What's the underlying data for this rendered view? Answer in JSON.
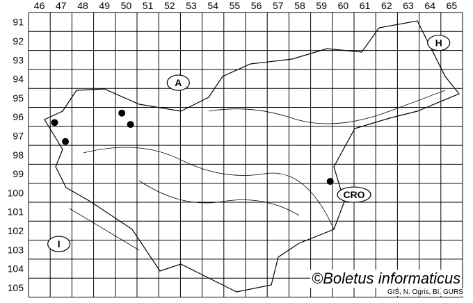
{
  "map": {
    "columns": [
      "46",
      "47",
      "48",
      "49",
      "50",
      "51",
      "52",
      "53",
      "54",
      "55",
      "56",
      "57",
      "58",
      "59",
      "60",
      "61",
      "62",
      "63",
      "64",
      "65"
    ],
    "rows": [
      "91",
      "92",
      "93",
      "94",
      "95",
      "96",
      "97",
      "98",
      "99",
      "100",
      "101",
      "102",
      "103",
      "104",
      "105"
    ],
    "country_labels": [
      {
        "text": "A",
        "col": 52.9,
        "row": 94.7
      },
      {
        "text": "H",
        "col": 64.9,
        "row": 92.6
      },
      {
        "text": "CRO",
        "col": 61.0,
        "row": 100.6
      },
      {
        "text": "I",
        "col": 47.4,
        "row": 103.2
      }
    ],
    "records": [
      {
        "col": 47.2,
        "row": 96.8
      },
      {
        "col": 47.7,
        "row": 97.8
      },
      {
        "col": 50.3,
        "row": 96.3
      },
      {
        "col": 50.7,
        "row": 96.9
      },
      {
        "col": 59.9,
        "row": 99.9
      }
    ],
    "marker_color": "#000000",
    "line_color": "#000000"
  },
  "credit": "©Boletus informaticus",
  "source": "GIS, N. Ogris, BI, GURS"
}
